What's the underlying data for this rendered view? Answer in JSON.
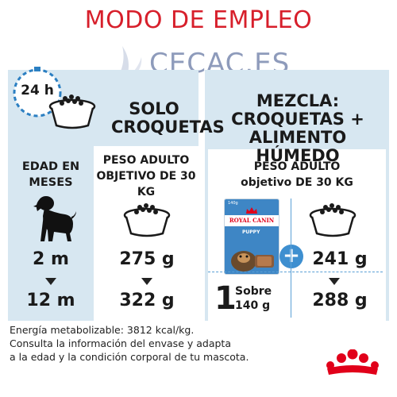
{
  "title": "MODO DE EMPLEO",
  "watermark": "CECAC.ES",
  "left_panel": {
    "timer_label": "24 h",
    "heading_line1": "SOLO",
    "heading_line2": "CROQUETAS",
    "age_label_line1": "EDAD EN",
    "age_label_line2": "MESES",
    "weight_label_line1": "PESO ADULTO",
    "weight_label_line2": "OBJETIVO DE 30",
    "weight_label_line3": "KG",
    "age_from": "2 m",
    "age_to": "12 m",
    "grams_from": "275 g",
    "grams_to": "322 g"
  },
  "right_panel": {
    "heading_line1": "MEZCLA:",
    "heading_line2": "CROQUETAS +",
    "heading_line3": "ALIMENTO HÚMEDO",
    "weight_label_line1": "PESO ADULTO",
    "weight_label_line2": "objetivo DE 30 KG",
    "pouch_brand": "ROYAL CANIN",
    "pouch_variant": "PUPPY",
    "pouch_weight": "140g",
    "sobre_count": "1",
    "sobre_label_line1": "Sobre",
    "sobre_label_line2": "140 g",
    "plus_symbol": "+",
    "grams_from": "241 g",
    "grams_to": "288 g"
  },
  "footer": {
    "line1": "Energía metabolizable: 3812 kcal/kg.",
    "line2": "Consulta la información del envase y adapta",
    "line3": "a la edad y la condición corporal de tu mascota."
  },
  "colors": {
    "title_red": "#d71f2b",
    "panel_blue": "#d7e7f1",
    "icon_blue": "#2b7fc2",
    "brand_red": "#e1001a"
  }
}
